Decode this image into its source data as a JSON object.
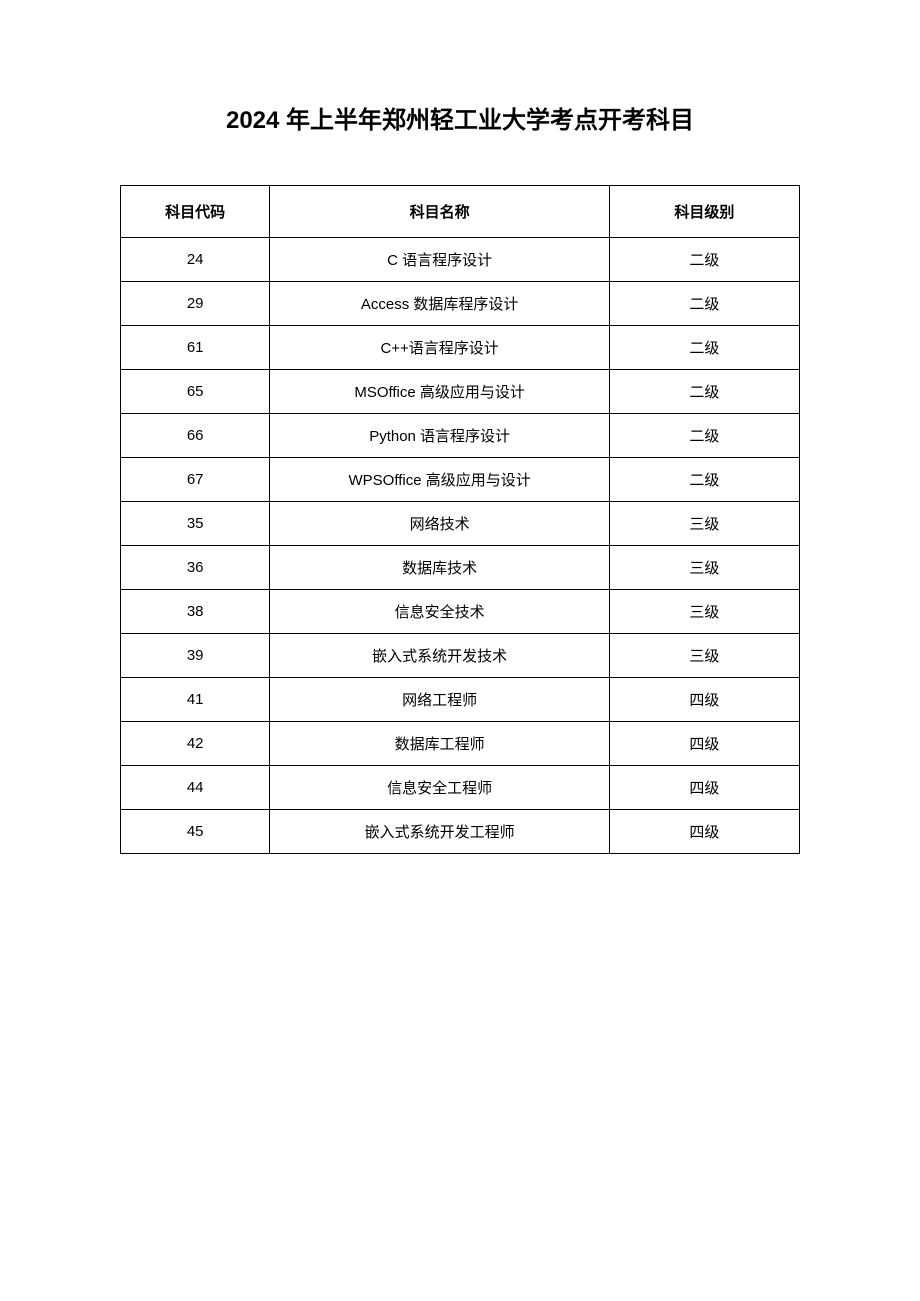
{
  "title": "2024 年上半年郑州轻工业大学考点开考科目",
  "table": {
    "columns": [
      {
        "label": "科目代码",
        "class": "col-code"
      },
      {
        "label": "科目名称",
        "class": "col-name"
      },
      {
        "label": "科目级别",
        "class": "col-level"
      }
    ],
    "rows": [
      {
        "code": "24",
        "name": "C 语言程序设计",
        "level": "二级"
      },
      {
        "code": "29",
        "name": "Access 数据库程序设计",
        "level": "二级"
      },
      {
        "code": "61",
        "name": "C++语言程序设计",
        "level": "二级"
      },
      {
        "code": "65",
        "name": "MSOffice 高级应用与设计",
        "level": "二级"
      },
      {
        "code": "66",
        "name": "Python 语言程序设计",
        "level": "二级"
      },
      {
        "code": "67",
        "name": "WPSOffice 高级应用与设计",
        "level": "二级"
      },
      {
        "code": "35",
        "name": "网络技术",
        "level": "三级"
      },
      {
        "code": "36",
        "name": "数据库技术",
        "level": "三级"
      },
      {
        "code": "38",
        "name": "信息安全技术",
        "level": "三级"
      },
      {
        "code": "39",
        "name": "嵌入式系统开发技术",
        "level": "三级"
      },
      {
        "code": "41",
        "name": "网络工程师",
        "level": "四级"
      },
      {
        "code": "42",
        "name": "数据库工程师",
        "level": "四级"
      },
      {
        "code": "44",
        "name": "信息安全工程师",
        "level": "四级"
      },
      {
        "code": "45",
        "name": "嵌入式系统开发工程师",
        "level": "四级"
      }
    ]
  },
  "styling": {
    "background_color": "#ffffff",
    "border_color": "#000000",
    "text_color": "#000000",
    "title_fontsize": 24,
    "header_fontsize": 15,
    "cell_fontsize": 15,
    "header_row_height": 52,
    "data_row_height": 44,
    "column_widths_pct": [
      22,
      50,
      28
    ]
  }
}
